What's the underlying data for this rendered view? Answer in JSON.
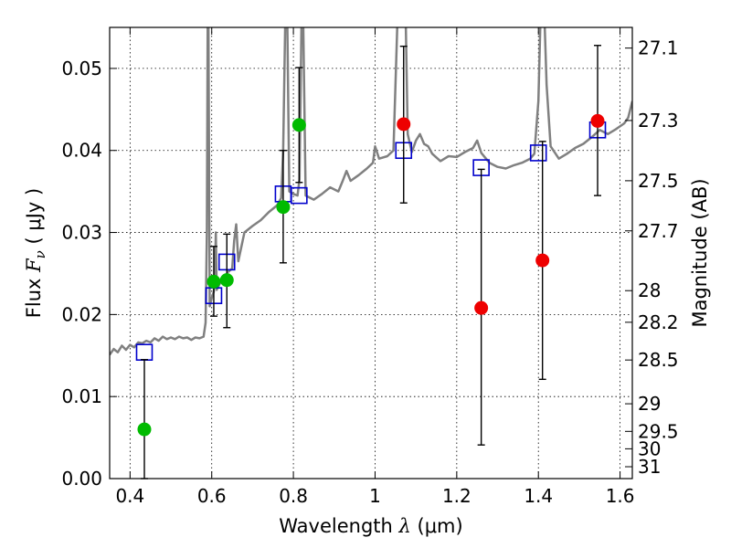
{
  "chart_data": {
    "type": "scatter",
    "title": "",
    "xlabel": {
      "prefix": "Wavelength  ",
      "symbol": "λ",
      "units": " (μm)"
    },
    "ylabel": {
      "prefix": "Flux  ",
      "symbol": "F",
      "subscript": "ν",
      "units": "  ( μJy )"
    },
    "y2label": "Magnitude (AB)",
    "xlim": [
      0.35,
      1.63
    ],
    "ylim": [
      0.0,
      0.055
    ],
    "grid": true,
    "legend": "none",
    "x_ticks": [
      {
        "v": 0.4,
        "label": "0.4"
      },
      {
        "v": 0.6,
        "label": "0.6"
      },
      {
        "v": 0.8,
        "label": "0.8"
      },
      {
        "v": 1.0,
        "label": "1"
      },
      {
        "v": 1.2,
        "label": "1.2"
      },
      {
        "v": 1.4,
        "label": "1.4"
      },
      {
        "v": 1.6,
        "label": "1.6"
      }
    ],
    "y_ticks": [
      {
        "v": 0.0,
        "label": "0.00"
      },
      {
        "v": 0.01,
        "label": "0.01"
      },
      {
        "v": 0.02,
        "label": "0.02"
      },
      {
        "v": 0.03,
        "label": "0.03"
      },
      {
        "v": 0.04,
        "label": "0.04"
      },
      {
        "v": 0.05,
        "label": "0.05"
      }
    ],
    "y2_ticks": [
      {
        "mag": 27.1,
        "label": "27.1"
      },
      {
        "mag": 27.3,
        "label": "27.3"
      },
      {
        "mag": 27.5,
        "label": "27.5"
      },
      {
        "mag": 27.7,
        "label": "27.7"
      },
      {
        "mag": 28.0,
        "label": "28"
      },
      {
        "mag": 28.2,
        "label": "28.2"
      },
      {
        "mag": 28.5,
        "label": "28.5"
      },
      {
        "mag": 29.0,
        "label": "29"
      },
      {
        "mag": 29.5,
        "label": "29.5"
      },
      {
        "mag": 30.0,
        "label": "30"
      },
      {
        "mag": 31.0,
        "label": "31"
      }
    ],
    "colors": {
      "spectrum": "#808080",
      "model": "#0000cc",
      "obs_green": "#00bb00",
      "obs_red": "#ee0000",
      "errorbar": "#000000",
      "grid": "#000000"
    },
    "spectrum": [
      [
        0.35,
        0.0151
      ],
      [
        0.36,
        0.0158
      ],
      [
        0.37,
        0.0154
      ],
      [
        0.38,
        0.0162
      ],
      [
        0.39,
        0.0157
      ],
      [
        0.4,
        0.0163
      ],
      [
        0.41,
        0.016
      ],
      [
        0.42,
        0.0166
      ],
      [
        0.43,
        0.0165
      ],
      [
        0.44,
        0.0168
      ],
      [
        0.45,
        0.0166
      ],
      [
        0.46,
        0.0171
      ],
      [
        0.47,
        0.0168
      ],
      [
        0.48,
        0.0173
      ],
      [
        0.49,
        0.017
      ],
      [
        0.5,
        0.0172
      ],
      [
        0.51,
        0.017
      ],
      [
        0.52,
        0.0173
      ],
      [
        0.53,
        0.0171
      ],
      [
        0.54,
        0.0172
      ],
      [
        0.55,
        0.0169
      ],
      [
        0.56,
        0.0172
      ],
      [
        0.57,
        0.0171
      ],
      [
        0.58,
        0.0173
      ],
      [
        0.585,
        0.019
      ],
      [
        0.588,
        0.03
      ],
      [
        0.59,
        0.056
      ],
      [
        0.592,
        0.056
      ],
      [
        0.595,
        0.021
      ],
      [
        0.6,
        0.022
      ],
      [
        0.605,
        0.0228
      ],
      [
        0.608,
        0.025
      ],
      [
        0.61,
        0.03
      ],
      [
        0.612,
        0.023
      ],
      [
        0.62,
        0.0238
      ],
      [
        0.63,
        0.0245
      ],
      [
        0.64,
        0.0252
      ],
      [
        0.65,
        0.0256
      ],
      [
        0.655,
        0.029
      ],
      [
        0.66,
        0.031
      ],
      [
        0.665,
        0.0265
      ],
      [
        0.68,
        0.03
      ],
      [
        0.7,
        0.0308
      ],
      [
        0.72,
        0.0315
      ],
      [
        0.74,
        0.0325
      ],
      [
        0.76,
        0.0333
      ],
      [
        0.77,
        0.0342
      ],
      [
        0.775,
        0.04
      ],
      [
        0.78,
        0.056
      ],
      [
        0.785,
        0.056
      ],
      [
        0.79,
        0.035
      ],
      [
        0.8,
        0.0347
      ],
      [
        0.81,
        0.0345
      ],
      [
        0.815,
        0.0365
      ],
      [
        0.82,
        0.056
      ],
      [
        0.824,
        0.056
      ],
      [
        0.83,
        0.0345
      ],
      [
        0.85,
        0.034
      ],
      [
        0.87,
        0.0347
      ],
      [
        0.89,
        0.0355
      ],
      [
        0.91,
        0.035
      ],
      [
        0.92,
        0.0362
      ],
      [
        0.93,
        0.0375
      ],
      [
        0.94,
        0.0363
      ],
      [
        0.96,
        0.037
      ],
      [
        0.98,
        0.0378
      ],
      [
        0.995,
        0.0385
      ],
      [
        1.0,
        0.0405
      ],
      [
        1.01,
        0.039
      ],
      [
        1.03,
        0.0393
      ],
      [
        1.045,
        0.04
      ],
      [
        1.05,
        0.048
      ],
      [
        1.055,
        0.056
      ],
      [
        1.06,
        0.056
      ],
      [
        1.07,
        0.056
      ],
      [
        1.075,
        0.056
      ],
      [
        1.08,
        0.042
      ],
      [
        1.09,
        0.0398
      ],
      [
        1.1,
        0.0412
      ],
      [
        1.11,
        0.042
      ],
      [
        1.12,
        0.0408
      ],
      [
        1.13,
        0.0405
      ],
      [
        1.14,
        0.0396
      ],
      [
        1.16,
        0.0387
      ],
      [
        1.18,
        0.0393
      ],
      [
        1.2,
        0.0392
      ],
      [
        1.22,
        0.0398
      ],
      [
        1.24,
        0.0403
      ],
      [
        1.25,
        0.0412
      ],
      [
        1.26,
        0.0397
      ],
      [
        1.28,
        0.0385
      ],
      [
        1.3,
        0.038
      ],
      [
        1.32,
        0.0378
      ],
      [
        1.34,
        0.0382
      ],
      [
        1.36,
        0.0385
      ],
      [
        1.38,
        0.039
      ],
      [
        1.39,
        0.0396
      ],
      [
        1.4,
        0.046
      ],
      [
        1.405,
        0.056
      ],
      [
        1.41,
        0.056
      ],
      [
        1.415,
        0.056
      ],
      [
        1.42,
        0.048
      ],
      [
        1.43,
        0.0405
      ],
      [
        1.45,
        0.039
      ],
      [
        1.47,
        0.0396
      ],
      [
        1.49,
        0.0403
      ],
      [
        1.51,
        0.0408
      ],
      [
        1.53,
        0.0416
      ],
      [
        1.55,
        0.0425
      ],
      [
        1.57,
        0.042
      ],
      [
        1.59,
        0.0426
      ],
      [
        1.61,
        0.0433
      ],
      [
        1.62,
        0.044
      ],
      [
        1.63,
        0.046
      ]
    ],
    "model_points": [
      {
        "x": 0.435,
        "y": 0.0154
      },
      {
        "x": 0.605,
        "y": 0.0223
      },
      {
        "x": 0.637,
        "y": 0.0264
      },
      {
        "x": 0.775,
        "y": 0.0347
      },
      {
        "x": 0.814,
        "y": 0.0345
      },
      {
        "x": 1.07,
        "y": 0.04
      },
      {
        "x": 1.26,
        "y": 0.0379
      },
      {
        "x": 1.4,
        "y": 0.0397
      },
      {
        "x": 1.545,
        "y": 0.0425
      }
    ],
    "observed": [
      {
        "x": 0.435,
        "y": 0.006,
        "ylo": 0.0,
        "yhi": 0.0145,
        "color": "green"
      },
      {
        "x": 0.605,
        "y": 0.024,
        "ylo": 0.0198,
        "yhi": 0.0283,
        "color": "green"
      },
      {
        "x": 0.637,
        "y": 0.0242,
        "ylo": 0.0184,
        "yhi": 0.0298,
        "color": "green"
      },
      {
        "x": 0.775,
        "y": 0.0331,
        "ylo": 0.0263,
        "yhi": 0.04,
        "color": "green"
      },
      {
        "x": 0.814,
        "y": 0.0431,
        "ylo": 0.0361,
        "yhi": 0.0501,
        "color": "green"
      },
      {
        "x": 1.07,
        "y": 0.0432,
        "ylo": 0.0336,
        "yhi": 0.0527,
        "color": "red"
      },
      {
        "x": 1.26,
        "y": 0.0208,
        "ylo": 0.0041,
        "yhi": 0.0377,
        "color": "red"
      },
      {
        "x": 1.41,
        "y": 0.0266,
        "ylo": 0.0121,
        "yhi": 0.0411,
        "color": "red"
      },
      {
        "x": 1.545,
        "y": 0.0436,
        "ylo": 0.0345,
        "yhi": 0.0528,
        "color": "red"
      }
    ]
  }
}
